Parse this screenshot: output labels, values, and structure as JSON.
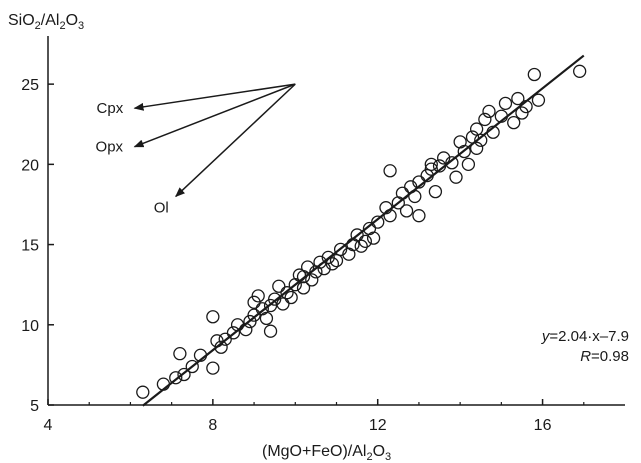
{
  "chart_data": {
    "type": "scatter",
    "title": "",
    "ylabel_parts": [
      "SiO",
      "2",
      "/Al",
      "2",
      "O",
      "3"
    ],
    "xlabel_parts": [
      "(MgO+FeO)/Al",
      "2",
      "O",
      "3"
    ],
    "xlim": [
      4,
      18
    ],
    "ylim": [
      5,
      28
    ],
    "xticks": [
      4,
      8,
      12,
      16
    ],
    "yticks": [
      5,
      10,
      15,
      20,
      25
    ],
    "grid": false,
    "marker": "open-circle",
    "points": [
      [
        6.3,
        5.8
      ],
      [
        6.8,
        6.3
      ],
      [
        7.1,
        6.7
      ],
      [
        7.2,
        8.2
      ],
      [
        7.3,
        6.9
      ],
      [
        7.5,
        7.4
      ],
      [
        7.7,
        8.1
      ],
      [
        8.0,
        7.3
      ],
      [
        8.0,
        10.5
      ],
      [
        8.2,
        8.6
      ],
      [
        8.3,
        9.1
      ],
      [
        8.5,
        9.5
      ],
      [
        8.6,
        10.0
      ],
      [
        8.8,
        9.7
      ],
      [
        8.9,
        10.2
      ],
      [
        9.0,
        10.6
      ],
      [
        9.1,
        11.8
      ],
      [
        9.2,
        11.0
      ],
      [
        9.3,
        10.4
      ],
      [
        9.4,
        11.2
      ],
      [
        9.4,
        9.6
      ],
      [
        9.5,
        11.6
      ],
      [
        9.6,
        12.4
      ],
      [
        9.7,
        11.3
      ],
      [
        9.8,
        12.0
      ],
      [
        9.9,
        11.7
      ],
      [
        10.0,
        12.5
      ],
      [
        10.1,
        13.1
      ],
      [
        10.2,
        12.3
      ],
      [
        10.3,
        13.6
      ],
      [
        10.4,
        12.8
      ],
      [
        10.5,
        13.3
      ],
      [
        10.6,
        13.9
      ],
      [
        10.7,
        13.5
      ],
      [
        10.8,
        14.2
      ],
      [
        11.0,
        14.0
      ],
      [
        11.1,
        14.7
      ],
      [
        11.3,
        14.4
      ],
      [
        11.4,
        15.0
      ],
      [
        11.5,
        15.6
      ],
      [
        11.6,
        14.9
      ],
      [
        11.8,
        16.0
      ],
      [
        11.9,
        15.4
      ],
      [
        12.0,
        16.4
      ],
      [
        12.2,
        17.3
      ],
      [
        12.3,
        16.8
      ],
      [
        12.3,
        19.6
      ],
      [
        12.5,
        17.6
      ],
      [
        12.6,
        18.2
      ],
      [
        12.7,
        17.1
      ],
      [
        12.8,
        18.6
      ],
      [
        13.0,
        18.9
      ],
      [
        13.0,
        16.8
      ],
      [
        13.2,
        19.3
      ],
      [
        13.3,
        20.0
      ],
      [
        13.3,
        19.7
      ],
      [
        13.4,
        18.3
      ],
      [
        13.5,
        19.9
      ],
      [
        13.6,
        20.4
      ],
      [
        13.8,
        20.1
      ],
      [
        13.9,
        19.2
      ],
      [
        14.0,
        21.4
      ],
      [
        14.1,
        20.8
      ],
      [
        14.2,
        20.0
      ],
      [
        14.3,
        21.7
      ],
      [
        14.4,
        22.2
      ],
      [
        14.5,
        21.5
      ],
      [
        14.6,
        22.8
      ],
      [
        14.7,
        23.3
      ],
      [
        14.8,
        22.0
      ],
      [
        15.0,
        23.0
      ],
      [
        15.1,
        23.8
      ],
      [
        15.3,
        22.6
      ],
      [
        15.4,
        24.1
      ],
      [
        15.5,
        23.2
      ],
      [
        15.6,
        23.6
      ],
      [
        15.8,
        25.6
      ],
      [
        15.9,
        24.0
      ],
      [
        16.9,
        25.8
      ],
      [
        10.2,
        13.0
      ],
      [
        11.7,
        15.2
      ],
      [
        12.9,
        18.0
      ],
      [
        14.4,
        21.0
      ],
      [
        9.0,
        11.4
      ],
      [
        8.1,
        9.0
      ],
      [
        10.9,
        13.8
      ]
    ],
    "fit": {
      "slope": 2.04,
      "intercept": -7.9,
      "x_range": [
        6.3,
        17.0
      ]
    },
    "equation": {
      "line1_var": "y",
      "line1_rest": "=2.04·x–7.9",
      "line2_var": "R",
      "line2_rest": "=0.98"
    },
    "vectors": {
      "origin": [
        10.0,
        25.0
      ],
      "arrows": [
        {
          "label": "Cpx",
          "tip": [
            6.1,
            23.5
          ]
        },
        {
          "label": "Opx",
          "tip": [
            6.1,
            21.1
          ]
        },
        {
          "label": "Ol",
          "tip": [
            7.1,
            18.0
          ]
        }
      ]
    },
    "colors": {
      "ink": "#1a1a1a",
      "background": "#ffffff"
    }
  }
}
